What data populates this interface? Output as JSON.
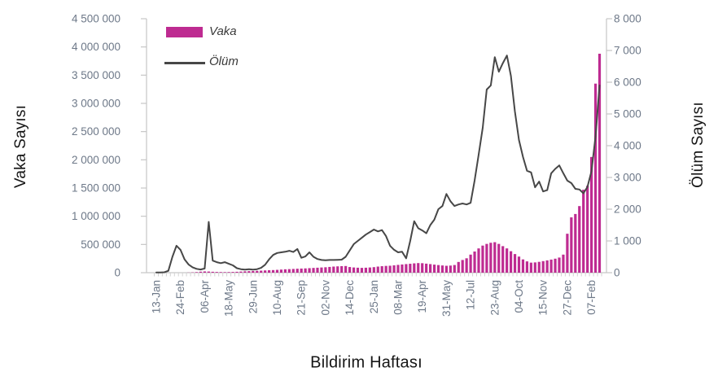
{
  "chart_data": {
    "type": "combo_bar_line",
    "title": "",
    "x_axis": {
      "title": "Bildirim Haftası",
      "tick_interval": 6,
      "tick_labels": [
        "13-Jan",
        "24-Feb",
        "06-Apr",
        "18-May",
        "29-Jun",
        "10-Aug",
        "21-Sep",
        "02-Nov",
        "14-Dec",
        "25-Jan",
        "08-Mar",
        "19-Apr",
        "31-May",
        "12-Jul",
        "23-Aug",
        "04-Oct",
        "15-Nov",
        "27-Dec",
        "07-Feb"
      ]
    },
    "y_axis_left": {
      "title": "Vaka Sayısı",
      "min": 0,
      "max": 4500000,
      "step": 500000,
      "tick_labels": [
        "0",
        "500 000",
        "1 000 000",
        "1 500 000",
        "2 000 000",
        "2 500 000",
        "3 000 000",
        "3 500 000",
        "4 000 000",
        "4 500 000"
      ]
    },
    "y_axis_right": {
      "title": "Ölüm Sayısı",
      "min": 0,
      "max": 8000,
      "step": 1000,
      "tick_labels": [
        "0",
        "1 000",
        "2 000",
        "3 000",
        "4 000",
        "5 000",
        "6 000",
        "7 000",
        "8 000"
      ]
    },
    "legend": {
      "bar_label": "Vaka",
      "line_label": "Ölüm"
    },
    "grid": false,
    "legend_position": "top-left-inside",
    "series": [
      {
        "name": "Vaka",
        "type": "bar",
        "axis": "left",
        "color": "#be2b91",
        "values": [
          0,
          0,
          0,
          0,
          0,
          0,
          0,
          0,
          2000,
          5000,
          10000,
          18000,
          22000,
          20000,
          16000,
          13000,
          11000,
          10000,
          11000,
          13000,
          16000,
          20000,
          24000,
          27000,
          30000,
          33000,
          36000,
          40000,
          43000,
          46000,
          50000,
          55000,
          60000,
          63000,
          66000,
          70000,
          73000,
          76000,
          80000,
          84000,
          88000,
          92000,
          96000,
          102000,
          108000,
          112000,
          116000,
          118000,
          100000,
          92000,
          88000,
          85000,
          88000,
          92000,
          98000,
          108000,
          115000,
          120000,
          123000,
          130000,
          138000,
          145000,
          152000,
          158000,
          165000,
          170000,
          168000,
          160000,
          152000,
          143000,
          135000,
          128000,
          122000,
          126000,
          136000,
          190000,
          225000,
          255000,
          320000,
          375000,
          430000,
          480000,
          510000,
          530000,
          540000,
          510000,
          470000,
          430000,
          380000,
          330000,
          285000,
          235000,
          200000,
          178000,
          182000,
          192000,
          205000,
          218000,
          232000,
          248000,
          268000,
          320000,
          690000,
          980000,
          1040000,
          1180000,
          1470000,
          1540000,
          2050000,
          3350000,
          3880000
        ]
      },
      {
        "name": "Ölüm",
        "type": "line",
        "axis": "right",
        "color": "#474747",
        "values": [
          5,
          8,
          12,
          60,
          500,
          850,
          720,
          420,
          260,
          170,
          120,
          100,
          130,
          1600,
          380,
          330,
          300,
          330,
          280,
          230,
          140,
          110,
          95,
          110,
          95,
          110,
          150,
          250,
          420,
          560,
          620,
          640,
          660,
          690,
          650,
          745,
          470,
          510,
          640,
          500,
          430,
          400,
          390,
          400,
          400,
          405,
          410,
          500,
          700,
          900,
          1000,
          1100,
          1200,
          1280,
          1360,
          1300,
          1340,
          1150,
          850,
          720,
          640,
          660,
          450,
          1000,
          1620,
          1400,
          1330,
          1240,
          1500,
          1670,
          2000,
          2100,
          2480,
          2250,
          2100,
          2150,
          2180,
          2150,
          2200,
          2900,
          3720,
          4570,
          5770,
          5900,
          6790,
          6330,
          6600,
          6840,
          6200,
          5080,
          4180,
          3640,
          3210,
          3160,
          2690,
          2870,
          2560,
          2600,
          3130,
          3270,
          3380,
          3130,
          2900,
          2820,
          2640,
          2620,
          2500,
          2700,
          3200,
          4300,
          5900
        ]
      }
    ],
    "colors": {
      "bar": "#be2b91",
      "line": "#474747",
      "axis_line": "#c6c6c6",
      "minor_tick": "#d2d2d2",
      "tick_text": "#6d7888",
      "title_text": "#161616"
    }
  }
}
